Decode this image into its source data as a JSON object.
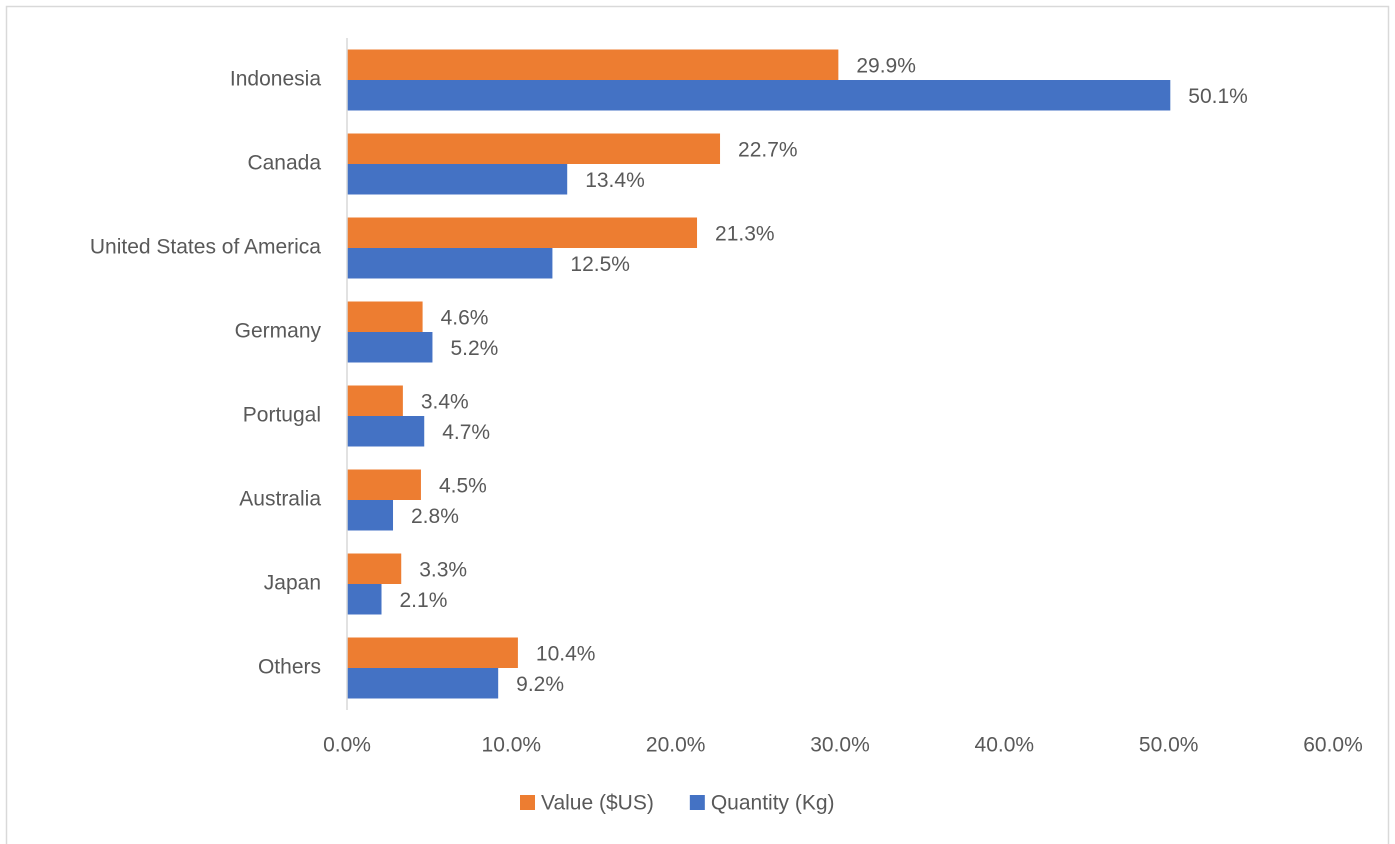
{
  "chart_data": {
    "type": "hbar",
    "categories": [
      "Indonesia",
      "Canada",
      "United States of America",
      "Germany",
      "Portugal",
      "Australia",
      "Japan",
      "Others"
    ],
    "series": [
      {
        "name": "Value ($US)",
        "color": "#ED7D31",
        "values": [
          29.9,
          22.7,
          21.3,
          4.6,
          3.4,
          4.5,
          3.3,
          10.4
        ],
        "value_labels": [
          "29.9%",
          "22.7%",
          "21.3%",
          "4.6%",
          "3.4%",
          "4.5%",
          "3.3%",
          "10.4%"
        ]
      },
      {
        "name": "Quantity (Kg)",
        "color": "#4472C4",
        "values": [
          50.1,
          13.4,
          12.5,
          5.2,
          4.7,
          2.8,
          2.1,
          9.2
        ],
        "value_labels": [
          "50.1%",
          "13.4%",
          "12.5%",
          "5.2%",
          "4.7%",
          "2.8%",
          "2.1%",
          "9.2%"
        ]
      }
    ],
    "xlim": [
      0,
      60
    ],
    "xticks": [
      {
        "value": 0,
        "label": "0.0%"
      },
      {
        "value": 10,
        "label": "10.0%"
      },
      {
        "value": 20,
        "label": "20.0%"
      },
      {
        "value": 30,
        "label": "30.0%"
      },
      {
        "value": 40,
        "label": "40.0%"
      },
      {
        "value": 50,
        "label": "50.0%"
      },
      {
        "value": 60,
        "label": "60.0%"
      }
    ],
    "legend": "bottom",
    "grid": false
  }
}
